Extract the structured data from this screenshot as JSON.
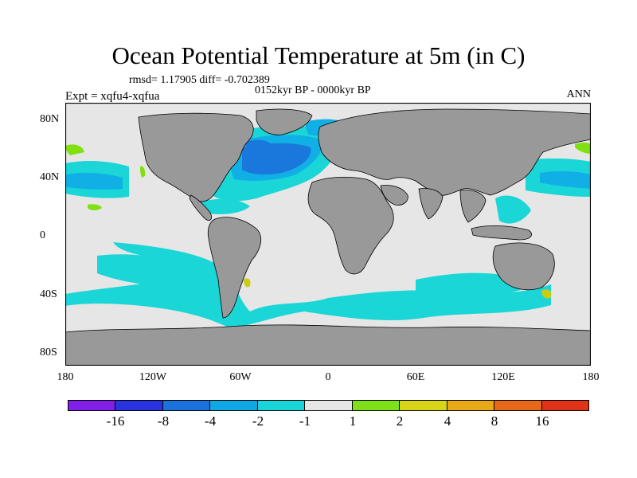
{
  "title": "Ocean Potential Temperature at 5m (in C)",
  "stats": "rmsd= 1.17905 diff= -0.702389",
  "period": "0152kyr BP - 0000kyr BP",
  "experiment": "Expt = xqfu4-xqfua",
  "season": "ANN",
  "x_ticks": [
    "180",
    "120W",
    "60W",
    "0",
    "60E",
    "120E",
    "180"
  ],
  "y_ticks": [
    "80N",
    "40N",
    "0",
    "40S",
    "80S"
  ],
  "colors": {
    "land": "#999999",
    "ocean_neutral": "#e6e6e6",
    "anom_minus1": "#1ad6d6",
    "anom_minus2": "#10b0e6",
    "anom_minus4": "#1a78dd",
    "anom_minus8": "#2040dd",
    "anom_plus1": "#80e010",
    "anom_plus2": "#cccc10"
  },
  "colorbar": {
    "colors": [
      "#7f1fe8",
      "#2a33e0",
      "#1c72dc",
      "#10a8e4",
      "#19d4d6",
      "#e6e6e6",
      "#7fe01a",
      "#d8d418",
      "#e8a818",
      "#e66818",
      "#e03318"
    ],
    "labels": [
      "-16",
      "-8",
      "-4",
      "-2",
      "-1",
      "1",
      "2",
      "4",
      "8",
      "16"
    ]
  }
}
